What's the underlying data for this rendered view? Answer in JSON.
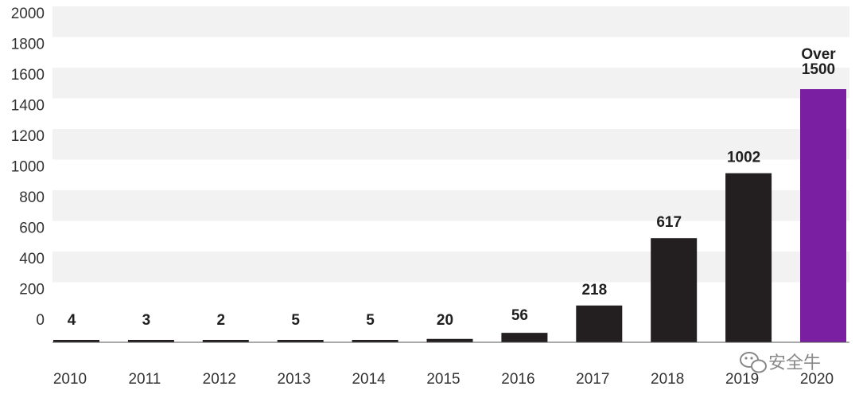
{
  "chart_data": {
    "type": "bar",
    "categories": [
      "2010",
      "2011",
      "2012",
      "2013",
      "2014",
      "2015",
      "2016",
      "2017",
      "2018",
      "2019",
      "2020"
    ],
    "values": [
      4,
      3,
      2,
      5,
      5,
      20,
      56,
      218,
      617,
      1002,
      1500
    ],
    "data_labels": [
      "4",
      "3",
      "2",
      "5",
      "5",
      "20",
      "56",
      "218",
      "617",
      "1002",
      "Over\n1500"
    ],
    "yticks": [
      "0",
      "200",
      "400",
      "600",
      "800",
      "1000",
      "1200",
      "1400",
      "1600",
      "1800",
      "2000"
    ],
    "ylim": [
      0,
      2000
    ],
    "grid": "alternating horizontal bands",
    "colors": {
      "bar": "#231f20",
      "highlight": "#7b1fa2",
      "band": "#f2f2f2",
      "axis": "#555555"
    },
    "highlight_index": 10
  },
  "watermark": {
    "text": "安全牛",
    "icon": "wechat-icon"
  }
}
